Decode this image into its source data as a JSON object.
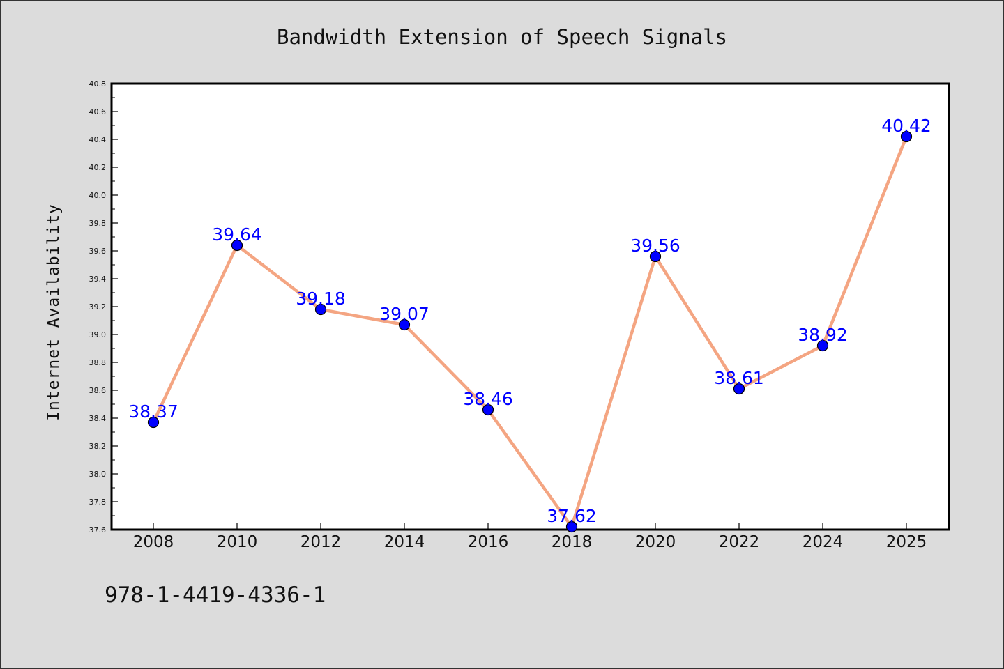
{
  "chart_data": {
    "type": "line",
    "title": "Bandwidth Extension of Speech Signals",
    "xlabel": "",
    "ylabel": "Internet Availability",
    "categories": [
      "2008",
      "2010",
      "2012",
      "2014",
      "2016",
      "2018",
      "2020",
      "2022",
      "2024",
      "2025"
    ],
    "values": [
      38.37,
      39.64,
      39.18,
      39.07,
      38.46,
      37.62,
      39.56,
      38.61,
      38.92,
      40.42
    ],
    "data_labels": [
      "38.37",
      "39.64",
      "39.18",
      "39.07",
      "38.46",
      "37.62",
      "39.56",
      "38.61",
      "38.92",
      "40.42"
    ],
    "ylim": [
      37.6,
      40.8
    ],
    "yticks": [
      "37.6",
      "37.8",
      "38.0",
      "38.2",
      "38.4",
      "38.6",
      "38.8",
      "39.0",
      "39.2",
      "39.4",
      "39.6",
      "39.8",
      "40.0",
      "40.2",
      "40.4",
      "40.6",
      "40.8"
    ],
    "grid": false,
    "line_color": "#f4a582",
    "marker_color": "#0000ff",
    "label_color": "#0000ff",
    "background_color": "#dcdcdc",
    "plot_background": "#ffffff"
  },
  "footnote": "978-1-4419-4336-1"
}
